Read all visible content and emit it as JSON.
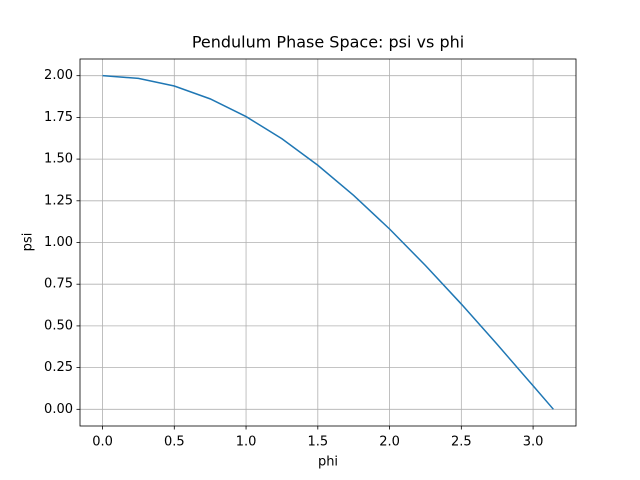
{
  "chart_data": {
    "type": "line",
    "title": "Pendulum Phase Space: psi vs phi",
    "x_label": "phi",
    "y_label": "psi",
    "x": [
      0,
      0.25,
      0.5,
      0.75,
      1.0,
      1.25,
      1.5,
      1.75,
      2.0,
      2.25,
      2.5,
      2.75,
      3.0,
      3.1416
    ],
    "series": [
      {
        "name": "psi",
        "color": "#1f77b4",
        "values": [
          2.0,
          1.984,
          1.938,
          1.861,
          1.755,
          1.622,
          1.463,
          1.282,
          1.081,
          0.862,
          0.631,
          0.389,
          0.141,
          0.0
        ]
      }
    ],
    "xlim": [
      -0.157,
      3.299
    ],
    "ylim": [
      -0.1,
      2.1
    ],
    "xticks": [
      {
        "value": 0,
        "label": "0.0"
      },
      {
        "value": 0.5,
        "label": "0.5"
      },
      {
        "value": 1,
        "label": "1.0"
      },
      {
        "value": 1.5,
        "label": "1.5"
      },
      {
        "value": 2,
        "label": "2.0"
      },
      {
        "value": 2.5,
        "label": "2.5"
      },
      {
        "value": 3,
        "label": "3.0"
      }
    ],
    "yticks": [
      {
        "value": 0,
        "label": "0.00"
      },
      {
        "value": 0.25,
        "label": "0.25"
      },
      {
        "value": 0.5,
        "label": "0.50"
      },
      {
        "value": 0.75,
        "label": "0.75"
      },
      {
        "value": 1,
        "label": "1.00"
      },
      {
        "value": 1.25,
        "label": "1.25"
      },
      {
        "value": 1.5,
        "label": "1.50"
      },
      {
        "value": 1.75,
        "label": "1.75"
      },
      {
        "value": 2,
        "label": "2.00"
      }
    ],
    "grid": true
  }
}
